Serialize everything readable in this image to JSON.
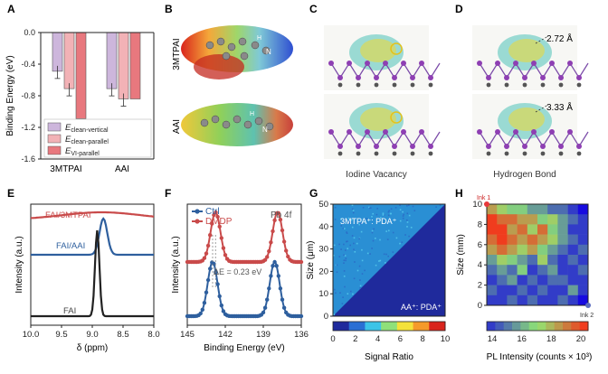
{
  "panels": {
    "A": "A",
    "B": "B",
    "C": "C",
    "D": "D",
    "E": "E",
    "F": "F",
    "G": "G",
    "H": "H"
  },
  "chart_data": [
    {
      "type": "bar",
      "panel": "A",
      "ylabel": "Binding Energy (eV)",
      "ylim": [
        -1.6,
        0.0
      ],
      "yticks": [
        "0.0",
        "-0.4",
        "-0.8",
        "-1.2",
        "-1.6"
      ],
      "categories": [
        "3MTPAI",
        "AAI"
      ],
      "series": [
        {
          "name": "E",
          "sub": "clean-vertical",
          "color": "#cdb6dc",
          "values": [
            -0.49,
            -0.71
          ],
          "err": [
            0.05,
            0.05
          ]
        },
        {
          "name": "E",
          "sub": "clean-parallel",
          "color": "#f2b2b6",
          "values": [
            -0.71,
            -0.84
          ],
          "err": [
            0.03,
            0.03
          ]
        },
        {
          "name": "E",
          "sub": "VI-parallel",
          "color": "#e8787e",
          "values": [
            -1.09,
            -0.84
          ],
          "err": [
            0.0,
            0.0
          ]
        }
      ]
    },
    {
      "type": "line",
      "panel": "E",
      "xlabel": "δ (ppm)",
      "ylabel": "Intensity (a.u.)",
      "xlim": [
        10.0,
        8.0
      ],
      "xticks": [
        "10.0",
        "9.5",
        "9.0",
        "8.5",
        "8.0"
      ],
      "series": [
        {
          "name": "FAI/3MTPAI",
          "color": "#c94a4a",
          "peak": 8.85,
          "amp": 0.06,
          "width": 0.9
        },
        {
          "name": "FAI/AAI",
          "color": "#2e5f9e",
          "peak": 8.82,
          "amp": 0.55,
          "width": 0.09
        },
        {
          "name": "FAI",
          "color": "#222222",
          "peak": 8.92,
          "amp": 1.0,
          "width": 0.05
        }
      ]
    },
    {
      "type": "line",
      "panel": "F",
      "xlabel": "Binding Energy (eV)",
      "ylabel": "Intensity (a.u.)",
      "xlim": [
        145,
        136
      ],
      "xticks": [
        "145",
        "142",
        "139",
        "136"
      ],
      "annotation": "Pb 4f",
      "delta_label": "ΔE = 0.23 eV",
      "series": [
        {
          "name": "Ctrl",
          "color": "#2e5f9e",
          "peaks": [
            143.0,
            138.1
          ]
        },
        {
          "name": "DMDP",
          "color": "#c94a4a",
          "peaks": [
            142.77,
            137.87
          ]
        }
      ]
    },
    {
      "type": "heatmap",
      "panel": "G",
      "ylabel": "Size (μm)",
      "xlabel": "Signal Ratio",
      "ylim": [
        0,
        50
      ],
      "yticks": [
        "0",
        "10",
        "20",
        "30",
        "40",
        "50"
      ],
      "colorbar_ticks": [
        "0",
        "2",
        "4",
        "6",
        "8",
        "10"
      ],
      "region_top": "3MTPA⁺: PDA⁺",
      "region_bottom": "AA⁺: PDA⁺"
    },
    {
      "type": "heatmap",
      "panel": "H",
      "ylabel": "Size (mm)",
      "xlabel": "PL Intensity (counts × 10³)",
      "ylim": [
        0,
        10
      ],
      "yticks": [
        "0",
        "2",
        "4",
        "6",
        "8",
        "10"
      ],
      "colorbar_ticks": [
        "14",
        "16",
        "18",
        "20"
      ],
      "ink1": "Ink 1",
      "ink2": "Ink 2"
    }
  ],
  "panelB": {
    "row1": "3MTPAI",
    "row2": "AAI"
  },
  "panelC": {
    "caption": "Iodine Vacancy"
  },
  "panelD": {
    "caption": "Hydrogen Bond",
    "d1": "2.72 Å",
    "d2": "3.33 Å"
  }
}
